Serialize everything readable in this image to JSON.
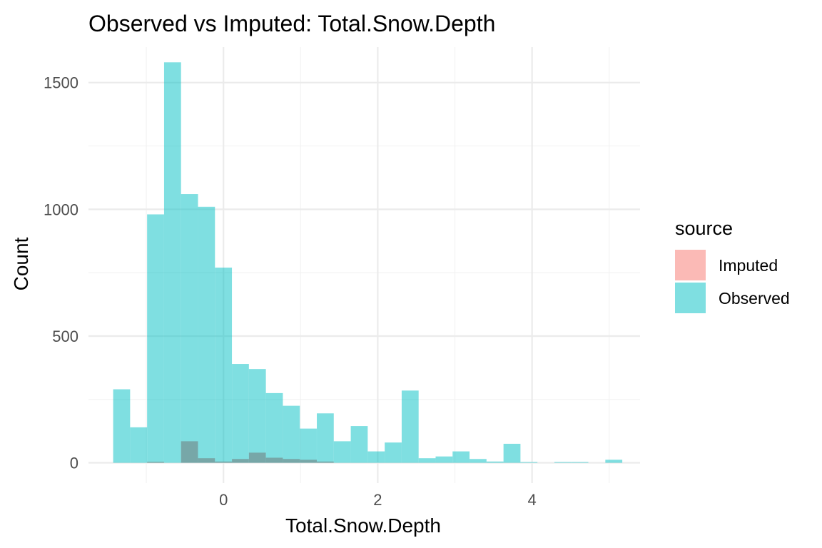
{
  "chart_data": {
    "type": "bar",
    "title": "Observed vs Imputed: Total.Snow.Depth",
    "xlabel": "Total.Snow.Depth",
    "ylabel": "Count",
    "xlim": [
      -1.75,
      5.4
    ],
    "ylim": [
      -80,
      1640
    ],
    "x_ticks": [
      0,
      2,
      4
    ],
    "y_ticks": [
      0,
      500,
      1000,
      1500
    ],
    "grid": true,
    "legend_position": "right",
    "legend_title": "source",
    "bin_width": 0.2197,
    "series": [
      {
        "name": "Imputed",
        "color": "#F8766D",
        "opacity": 0.5,
        "bins": [
          {
            "x0": -1.43,
            "count": 0
          },
          {
            "x0": -1.21,
            "count": 0
          },
          {
            "x0": -0.99,
            "count": 4
          },
          {
            "x0": -0.77,
            "count": 0
          },
          {
            "x0": -0.55,
            "count": 85
          },
          {
            "x0": -0.33,
            "count": 18
          },
          {
            "x0": -0.11,
            "count": 5
          },
          {
            "x0": 0.11,
            "count": 15
          },
          {
            "x0": 0.33,
            "count": 40
          },
          {
            "x0": 0.55,
            "count": 20
          },
          {
            "x0": 0.77,
            "count": 15
          },
          {
            "x0": 0.99,
            "count": 12
          },
          {
            "x0": 1.21,
            "count": 5
          },
          {
            "x0": 1.43,
            "count": 0
          },
          {
            "x0": 1.65,
            "count": 0
          },
          {
            "x0": 1.87,
            "count": 0
          },
          {
            "x0": 2.09,
            "count": 0
          },
          {
            "x0": 2.31,
            "count": 0
          },
          {
            "x0": 2.53,
            "count": 0
          },
          {
            "x0": 2.75,
            "count": 0
          },
          {
            "x0": 2.97,
            "count": 0
          },
          {
            "x0": 3.19,
            "count": 0
          },
          {
            "x0": 3.41,
            "count": 0
          },
          {
            "x0": 3.63,
            "count": 0
          },
          {
            "x0": 3.85,
            "count": 0
          },
          {
            "x0": 4.07,
            "count": 0
          },
          {
            "x0": 4.29,
            "count": 0
          },
          {
            "x0": 4.51,
            "count": 0
          },
          {
            "x0": 4.73,
            "count": 0
          },
          {
            "x0": 4.95,
            "count": 0
          }
        ]
      },
      {
        "name": "Observed",
        "color": "#00BFC4",
        "opacity": 0.5,
        "bins": [
          {
            "x0": -1.43,
            "count": 290
          },
          {
            "x0": -1.21,
            "count": 140
          },
          {
            "x0": -0.99,
            "count": 980
          },
          {
            "x0": -0.77,
            "count": 1580
          },
          {
            "x0": -0.55,
            "count": 1060
          },
          {
            "x0": -0.33,
            "count": 1010
          },
          {
            "x0": -0.11,
            "count": 770
          },
          {
            "x0": 0.11,
            "count": 390
          },
          {
            "x0": 0.33,
            "count": 370
          },
          {
            "x0": 0.55,
            "count": 275
          },
          {
            "x0": 0.77,
            "count": 225
          },
          {
            "x0": 0.99,
            "count": 135
          },
          {
            "x0": 1.21,
            "count": 195
          },
          {
            "x0": 1.43,
            "count": 85
          },
          {
            "x0": 1.65,
            "count": 145
          },
          {
            "x0": 1.87,
            "count": 45
          },
          {
            "x0": 2.09,
            "count": 80
          },
          {
            "x0": 2.31,
            "count": 285
          },
          {
            "x0": 2.53,
            "count": 18
          },
          {
            "x0": 2.75,
            "count": 25
          },
          {
            "x0": 2.97,
            "count": 45
          },
          {
            "x0": 3.19,
            "count": 15
          },
          {
            "x0": 3.41,
            "count": 5
          },
          {
            "x0": 3.63,
            "count": 75
          },
          {
            "x0": 3.85,
            "count": 3
          },
          {
            "x0": 4.07,
            "count": 0
          },
          {
            "x0": 4.29,
            "count": 3
          },
          {
            "x0": 4.51,
            "count": 3
          },
          {
            "x0": 4.73,
            "count": 0
          },
          {
            "x0": 4.95,
            "count": 12
          }
        ]
      }
    ]
  }
}
